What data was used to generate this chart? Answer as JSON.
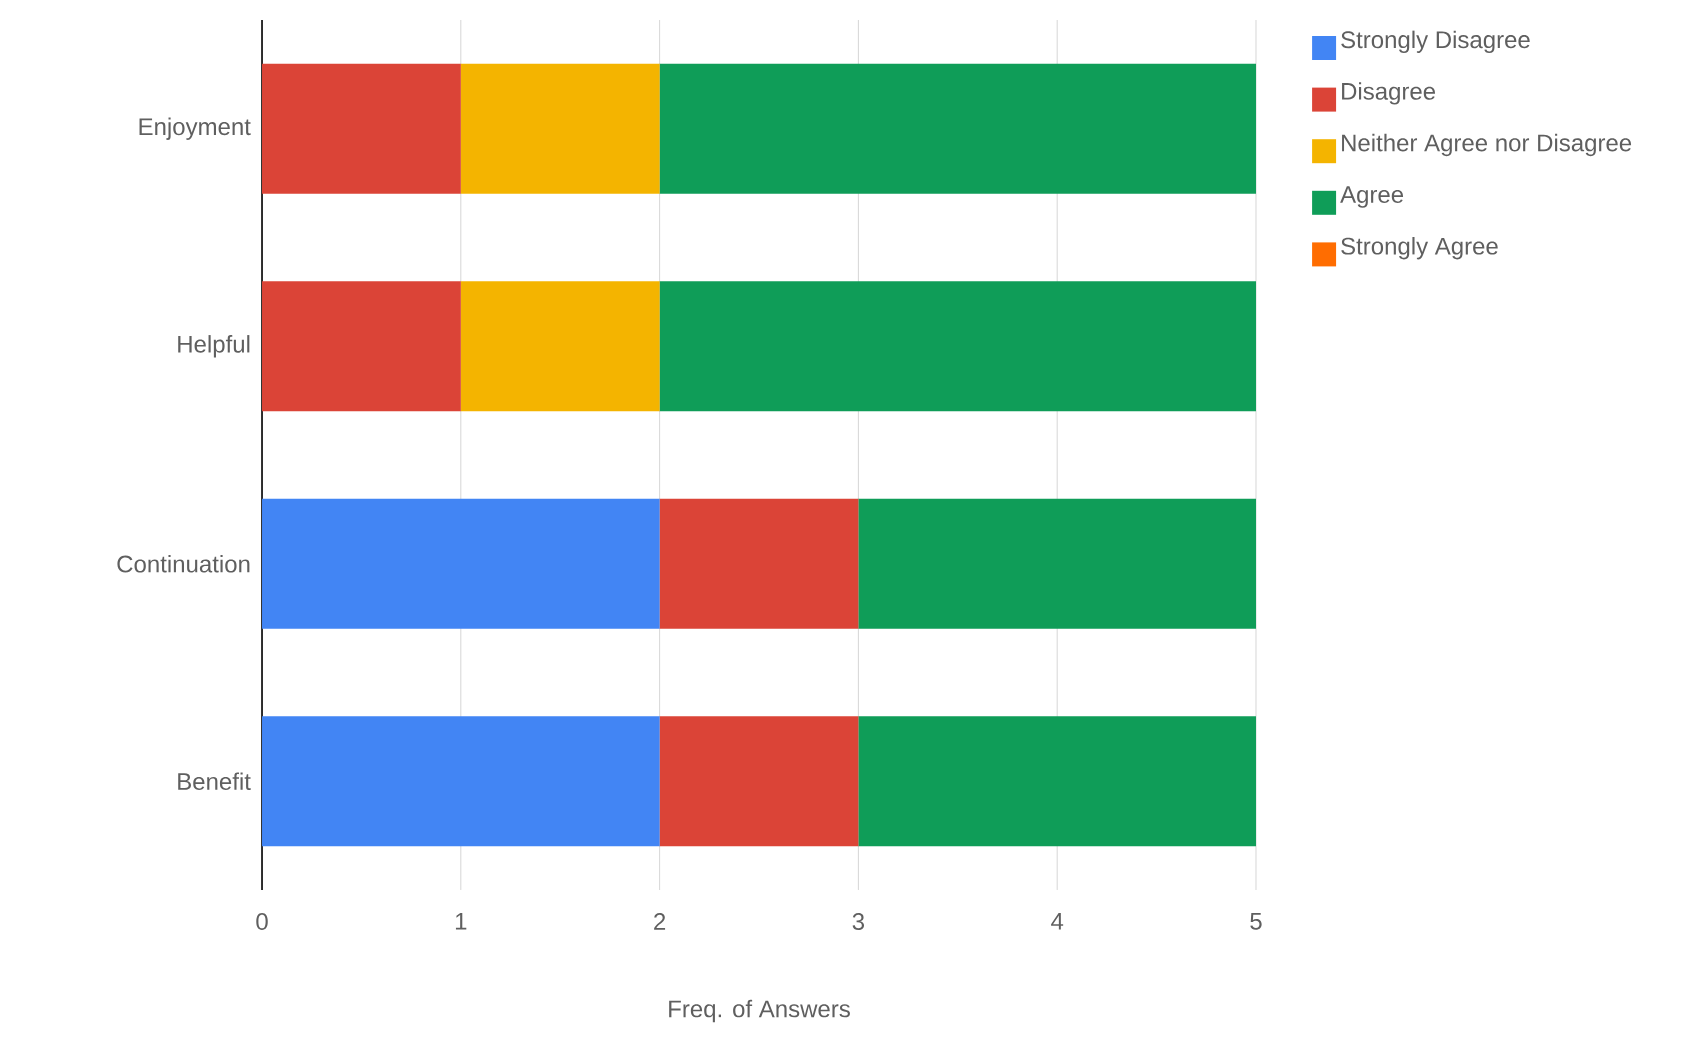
{
  "chart_data": {
    "type": "bar",
    "orientation": "horizontal",
    "stacked": true,
    "xlabel": "Freq. of Answers",
    "categories": [
      "Enjoyment",
      "Helpful",
      "Continuation",
      "Benefit"
    ],
    "series": [
      {
        "name": "Strongly Disagree",
        "color": "#4285f4",
        "values": [
          0,
          0,
          2,
          2
        ]
      },
      {
        "name": "Disagree",
        "color": "#db4437",
        "values": [
          1,
          1,
          1,
          1
        ]
      },
      {
        "name": "Neither Agree nor Disagree",
        "color": "#f4b400",
        "values": [
          1,
          1,
          0,
          0
        ]
      },
      {
        "name": "Agree",
        "color": "#0f9d58",
        "values": [
          3,
          3,
          2,
          2
        ]
      },
      {
        "name": "Strongly Agree",
        "color": "#ff6d01",
        "values": [
          0,
          0,
          0,
          0
        ]
      }
    ],
    "xlim": [
      0,
      5
    ],
    "xticks": [
      0,
      1,
      2,
      3,
      4,
      5
    ],
    "grid": "x",
    "legend": "top right"
  }
}
